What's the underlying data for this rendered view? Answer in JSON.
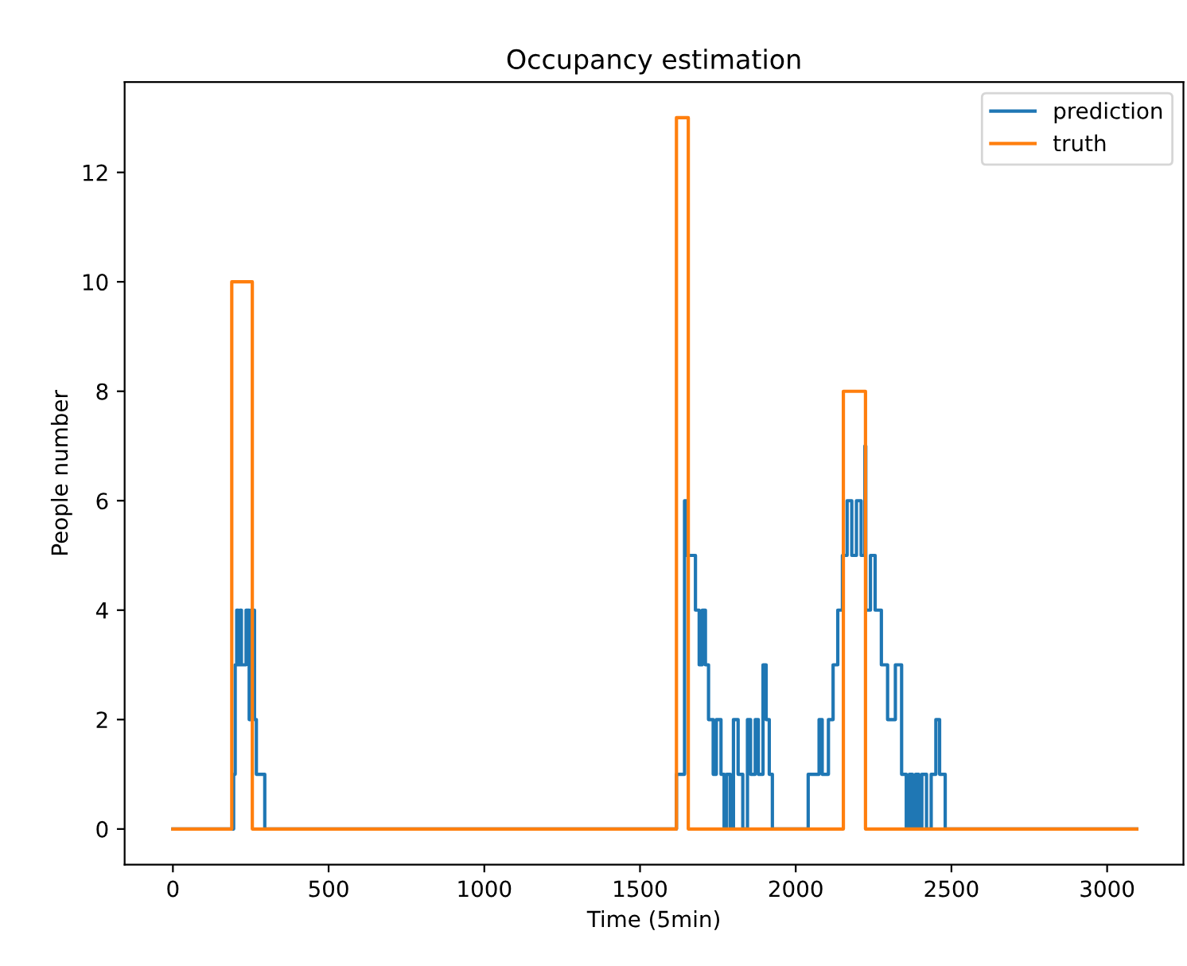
{
  "chart_data": {
    "type": "step",
    "title": "Occupancy estimation",
    "xlabel": "Time (5min)",
    "ylabel": "People number",
    "xlim": [
      -155,
      3245
    ],
    "ylim": [
      -0.65,
      13.65
    ],
    "xticks": [
      0,
      500,
      1000,
      1500,
      2000,
      2500,
      3000
    ],
    "yticks": [
      0,
      2,
      4,
      6,
      8,
      10,
      12
    ],
    "legend": "top right",
    "line_style": "solid",
    "series": [
      {
        "name": "prediction",
        "color": "#1f77b4",
        "x": [
          0,
          195,
          200,
          205,
          210,
          215,
          220,
          235,
          245,
          250,
          262,
          268,
          280,
          295,
          1617,
          1643,
          1650,
          1678,
          1690,
          1700,
          1710,
          1720,
          1735,
          1745,
          1760,
          1770,
          1778,
          1790,
          1800,
          1815,
          1830,
          1845,
          1855,
          1870,
          1880,
          1895,
          1905,
          1915,
          1925,
          2040,
          2075,
          2085,
          2105,
          2120,
          2135,
          2150,
          2165,
          2180,
          2195,
          2210,
          2222,
          2225,
          2240,
          2255,
          2275,
          2295,
          2320,
          2340,
          2355,
          2365,
          2375,
          2385,
          2395,
          2405,
          2420,
          2435,
          2450,
          2462,
          2466,
          2480,
          3095
        ],
        "values": [
          0,
          1,
          3,
          4,
          3,
          4,
          3,
          4,
          2,
          4,
          2,
          1,
          1,
          0,
          1,
          6,
          5,
          4,
          3,
          4,
          3,
          2,
          1,
          2,
          1,
          0,
          1,
          0,
          2,
          1,
          0,
          2,
          1,
          2,
          1,
          3,
          2,
          1,
          0,
          1,
          2,
          1,
          2,
          3,
          4,
          5,
          6,
          5,
          6,
          5,
          7,
          4,
          5,
          4,
          3,
          2,
          3,
          1,
          0,
          1,
          0,
          1,
          0,
          1,
          0,
          1,
          2,
          1,
          1,
          0,
          0
        ]
      },
      {
        "name": "truth",
        "color": "#ff7f0e",
        "x": [
          0,
          189,
          255,
          1617,
          1655,
          2153,
          2224,
          3095
        ],
        "values": [
          0,
          10,
          0,
          13,
          0,
          8,
          0,
          0
        ]
      }
    ]
  }
}
